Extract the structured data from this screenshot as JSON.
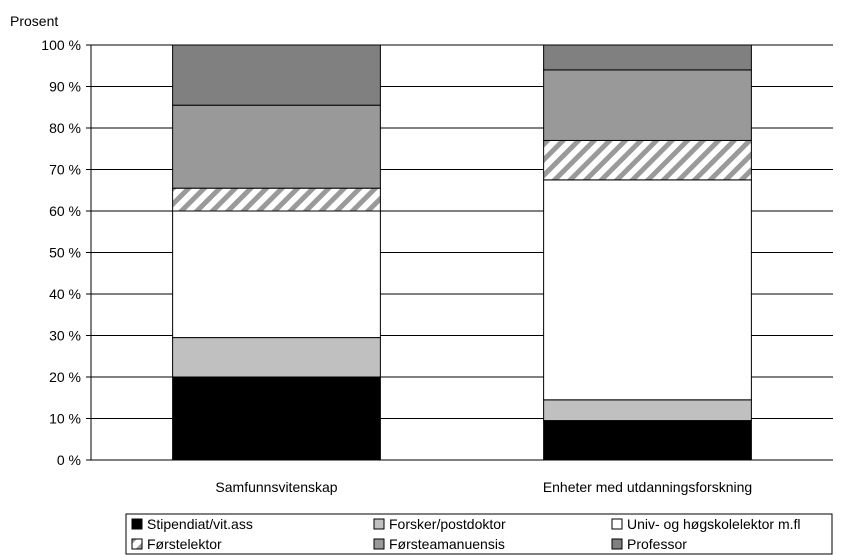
{
  "chart_data": {
    "type": "bar",
    "stacked": true,
    "ylabel": "Prosent",
    "ylim": [
      0,
      100
    ],
    "y_ticks": [
      "0 %",
      "10 %",
      "20 %",
      "30 %",
      "40 %",
      "50 %",
      "60 %",
      "70 %",
      "80 %",
      "90 %",
      "100 %"
    ],
    "categories": [
      "Samfunnsvitenskap",
      "Enheter med utdanningsforskning"
    ],
    "series": [
      {
        "name": "Stipendiat/vit.ass",
        "values": [
          20,
          9.5
        ],
        "color": "#000000",
        "pattern": "solid"
      },
      {
        "name": "Forsker/postdoktor",
        "values": [
          9.5,
          5
        ],
        "color": "#c0c0c0",
        "pattern": "solid"
      },
      {
        "name": "Univ- og høgskolelektor m.fl",
        "values": [
          30.5,
          53
        ],
        "color": "#ffffff",
        "pattern": "solid"
      },
      {
        "name": "Førstelektor",
        "values": [
          5.5,
          9.5
        ],
        "color": "#ffffff",
        "pattern": "diagonal-stripes"
      },
      {
        "name": "Førsteamanuensis",
        "values": [
          20,
          17
        ],
        "color": "#999999",
        "pattern": "solid"
      },
      {
        "name": "Professor",
        "values": [
          14.5,
          6
        ],
        "color": "#808080",
        "pattern": "solid"
      }
    ],
    "grid": true,
    "legend_position": "bottom"
  }
}
